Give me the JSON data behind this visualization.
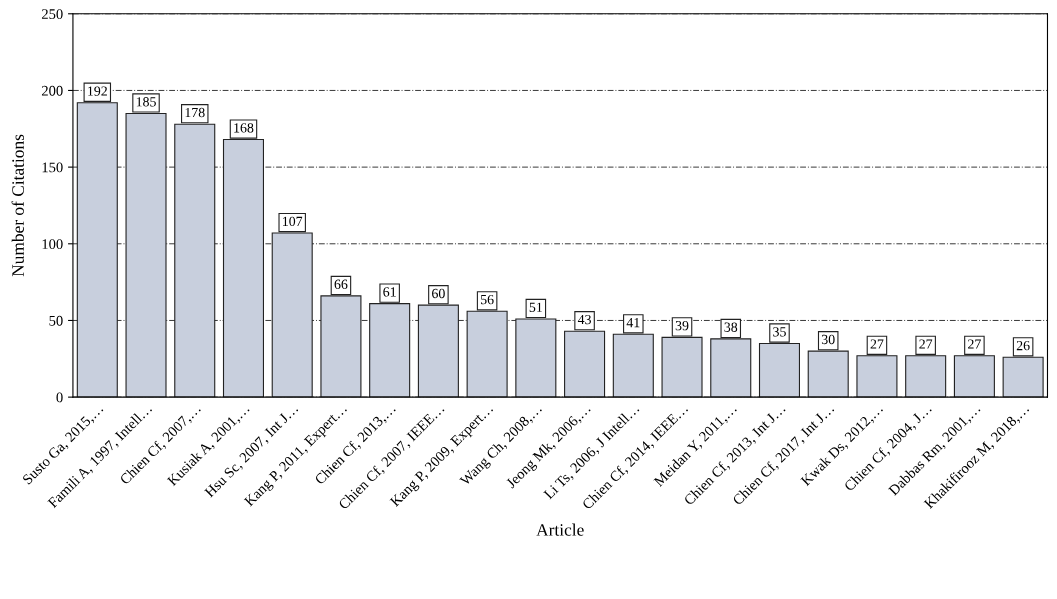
{
  "chart_data": {
    "type": "bar",
    "xlabel": "Article",
    "ylabel": "Number of Citations",
    "categories": [
      "Susto Ga, 2015,…",
      "Famili A, 1997, Intell…",
      "Chien Cf, 2007,…",
      "Kusiak A, 2001,…",
      "Hsu Sc, 2007, Int J…",
      "Kang P, 2011, Expert…",
      "Chien Cf, 2013,…",
      "Chien Cf, 2007, IEEE…",
      "Kang P, 2009, Expert…",
      "Wang Ch, 2008,…",
      "Jeong Mk, 2006,…",
      "Li Ts, 2006, J Intell…",
      "Chien Cf, 2014, IEEE…",
      "Meidan Y, 2011,…",
      "Chien Cf, 2013, Int J…",
      "Chien Cf, 2017, Int J…",
      "Kwak Ds, 2012,…",
      "Chien Cf, 2004, J…",
      "Dabbas Rm, 2001,…",
      "Khakifirooz M, 2018,…"
    ],
    "values": [
      192,
      185,
      178,
      168,
      107,
      66,
      61,
      60,
      56,
      51,
      43,
      41,
      39,
      38,
      35,
      30,
      27,
      27,
      27,
      26
    ],
    "color": "#c8cfdd",
    "ylim": [
      0,
      250
    ],
    "yticks": [
      0,
      50,
      100,
      150,
      200,
      250
    ],
    "grid": "y",
    "data_labels": true
  }
}
